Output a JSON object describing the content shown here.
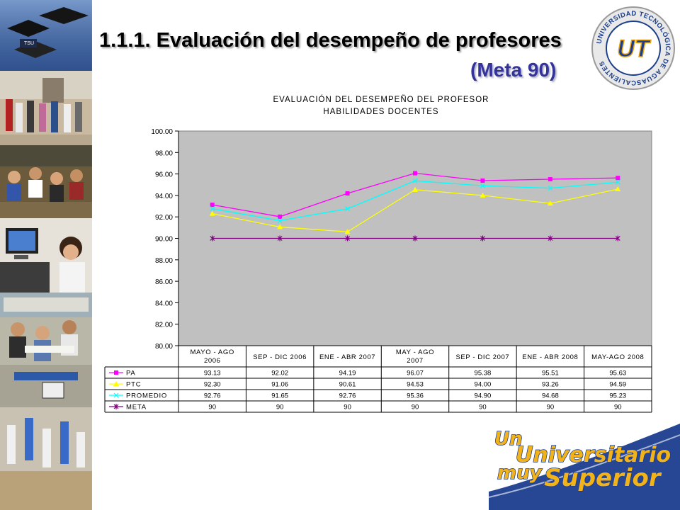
{
  "slide": {
    "title": "1.1.1. Evaluación del desempeño de profesores",
    "subtitle": "(Meta 90)"
  },
  "logo": {
    "ring_text": "UNIVERSIDAD TECNOLÓGICA DE AGUASCALIENTES",
    "monogram": "UT",
    "colors": {
      "blue": "#1a3e8c",
      "gold": "#e8a317",
      "ring": "#cfcfcf"
    }
  },
  "slogan": {
    "lines": [
      "Un",
      "Universitario",
      "muy",
      "Superior"
    ],
    "colors": {
      "gold": "#f2b21a",
      "outline": "#1b3d8f",
      "swoosh": "#1b3d8f"
    }
  },
  "photo_strip": {
    "items": [
      "graduation-caps-photo",
      "students-walking-photo",
      "classroom-photo",
      "computer-lab-photo",
      "study-group-photo",
      "basketball-photo"
    ]
  },
  "chart_data": {
    "type": "line",
    "title": "EVALUACIÓN DEL DESEMPEÑO DEL PROFESOR",
    "subtitle": "HABILIDADES DOCENTES",
    "xlabel": "",
    "ylabel": "",
    "ylim": [
      80,
      100
    ],
    "ytick_labels": [
      "80.00",
      "82.00",
      "84.00",
      "86.00",
      "88.00",
      "90.00",
      "92.00",
      "94.00",
      "96.00",
      "98.00",
      "100.00"
    ],
    "categories": [
      [
        "MAYO - AGO",
        "2006"
      ],
      [
        "SEP - DIC 2006"
      ],
      [
        "ENE - ABR 2007"
      ],
      [
        "MAY - AGO",
        "2007"
      ],
      [
        "SEP - DIC 2007"
      ],
      [
        "ENE - ABR 2008"
      ],
      [
        "MAY-AGO 2008"
      ]
    ],
    "grid": false,
    "plot_background": "#c0c0c0",
    "legend": "data-table-below",
    "series": [
      {
        "name": "PA",
        "color": "#ff00ff",
        "marker": "square",
        "values": [
          93.13,
          92.02,
          94.19,
          96.07,
          95.38,
          95.51,
          95.63
        ],
        "labels": [
          "93.13",
          "92.02",
          "94.19",
          "96.07",
          "95.38",
          "95.51",
          "95.63"
        ]
      },
      {
        "name": "PTC",
        "color": "#ffff00",
        "marker": "triangle",
        "values": [
          92.3,
          91.06,
          90.61,
          94.53,
          94.0,
          93.26,
          94.59
        ],
        "labels": [
          "92.30",
          "91.06",
          "90.61",
          "94.53",
          "94.00",
          "93.26",
          "94.59"
        ]
      },
      {
        "name": "PROMEDIO",
        "color": "#00ffff",
        "marker": "x",
        "values": [
          92.76,
          91.65,
          92.76,
          95.36,
          94.9,
          94.68,
          95.23
        ],
        "labels": [
          "92.76",
          "91.65",
          "92.76",
          "95.36",
          "94.90",
          "94.68",
          "95.23"
        ]
      },
      {
        "name": "META",
        "color": "#800080",
        "marker": "star",
        "values": [
          90,
          90,
          90,
          90,
          90,
          90,
          90
        ],
        "labels": [
          "90",
          "90",
          "90",
          "90",
          "90",
          "90",
          "90"
        ]
      }
    ]
  }
}
